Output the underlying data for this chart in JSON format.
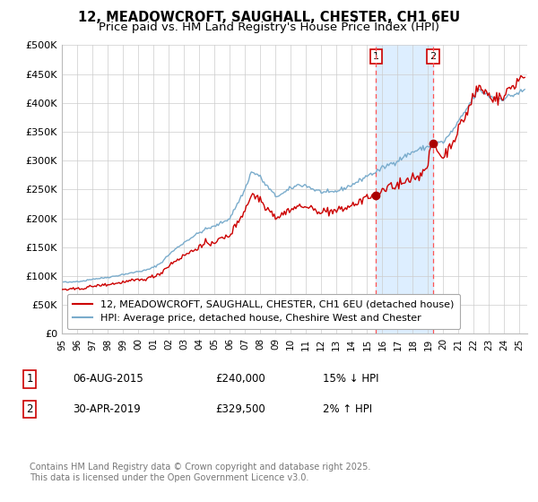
{
  "title1": "12, MEADOWCROFT, SAUGHALL, CHESTER, CH1 6EU",
  "title2": "Price paid vs. HM Land Registry's House Price Index (HPI)",
  "legend1": "12, MEADOWCROFT, SAUGHALL, CHESTER, CH1 6EU (detached house)",
  "legend2": "HPI: Average price, detached house, Cheshire West and Chester",
  "annotation1_label": "1",
  "annotation1_date": "06-AUG-2015",
  "annotation1_price": "£240,000",
  "annotation1_hpi": "15% ↓ HPI",
  "annotation1_year": 2015.58,
  "annotation1_value": 240000,
  "annotation2_label": "2",
  "annotation2_date": "30-APR-2019",
  "annotation2_price": "£329,500",
  "annotation2_hpi": "2% ↑ HPI",
  "annotation2_year": 2019.33,
  "annotation2_value": 329500,
  "ylabel_ticks": [
    "£0",
    "£50K",
    "£100K",
    "£150K",
    "£200K",
    "£250K",
    "£300K",
    "£350K",
    "£400K",
    "£450K",
    "£500K"
  ],
  "ytick_values": [
    0,
    50000,
    100000,
    150000,
    200000,
    250000,
    300000,
    350000,
    400000,
    450000,
    500000
  ],
  "xlim_start": 1995.0,
  "xlim_end": 2025.5,
  "ylim_min": 0,
  "ylim_max": 500000,
  "red_line_color": "#cc0000",
  "blue_line_color": "#7aaccc",
  "shade_color": "#ddeeff",
  "dashed_line_color": "#ff5555",
  "dot_color": "#aa0000",
  "grid_color": "#cccccc",
  "background_color": "#ffffff",
  "footer_text": "Contains HM Land Registry data © Crown copyright and database right 2025.\nThis data is licensed under the Open Government Licence v3.0.",
  "title_fontsize": 10.5,
  "subtitle_fontsize": 9.5,
  "tick_fontsize": 8,
  "legend_fontsize": 8,
  "annotation_fontsize": 8.5,
  "footer_fontsize": 7
}
